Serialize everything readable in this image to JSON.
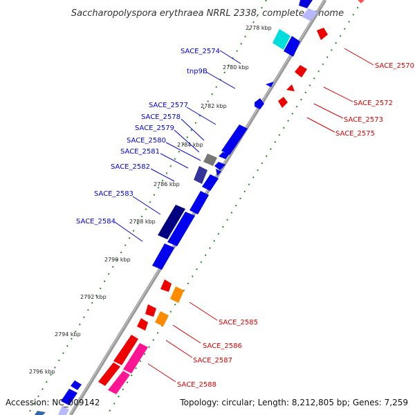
{
  "title": "Saccharopolyspora erythraea NRRL 2338, complete genome",
  "footer": {
    "accession": "Accession: NC_009142",
    "topology": "Topology: circular; Length: 8,212,805 bp; Genes: 7,259"
  },
  "colors": {
    "left_label": "#0000dd",
    "right_label": "#dd0000",
    "backbone": "#888888",
    "dots": "#228822"
  },
  "ticks": [
    "2778 kbp",
    "2780 kbp",
    "2782 kbp",
    "2784 kbp",
    "2786 kbp",
    "2788 kbp",
    "2790 kbp",
    "2792 kbp",
    "2794 kbp",
    "2796 kbp"
  ],
  "left_labels": [
    "SACE_2574",
    "tnp9B",
    "SACE_2577",
    "SACE_2578",
    "SACE_2579",
    "SACE_2580",
    "SACE_2581",
    "SACE_2582",
    "SACE_2583",
    "SACE_2584"
  ],
  "right_labels": [
    "SACE_2570",
    "SACE_2572",
    "SACE_2573",
    "SACE_2575",
    "SACE_2585",
    "SACE_2586",
    "SACE_2587",
    "SACE_2588"
  ]
}
